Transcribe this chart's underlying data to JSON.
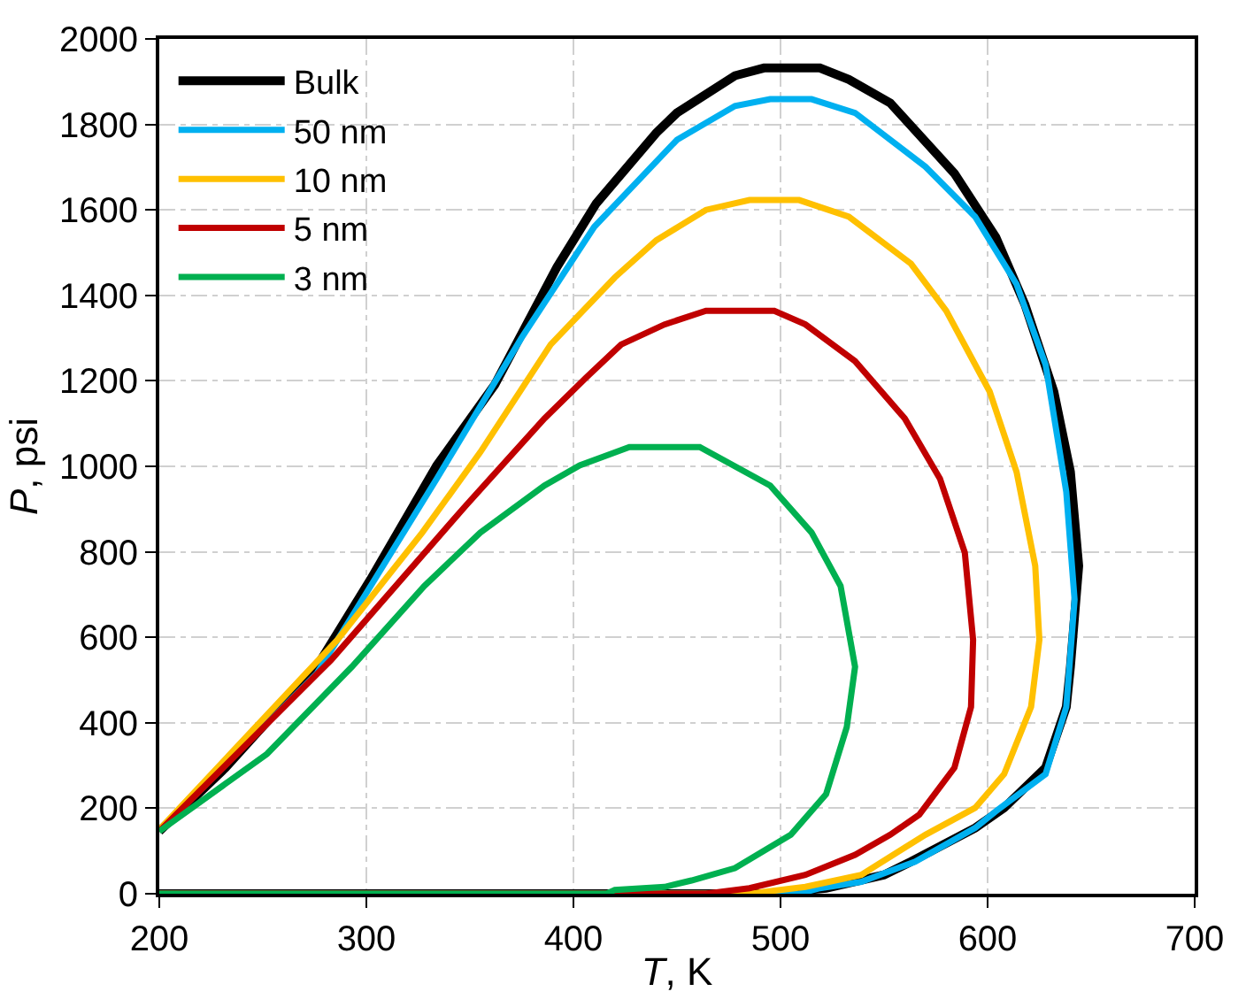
{
  "chart_data": {
    "type": "line",
    "xlabel": "T, K",
    "ylabel": "P, psi",
    "xlim": [
      200,
      700
    ],
    "xticks": [
      200,
      300,
      400,
      500,
      600,
      700
    ],
    "ylim": [
      0,
      2000
    ],
    "yticks": [
      0,
      200,
      400,
      600,
      800,
      1000,
      1200,
      1400,
      1600,
      1800,
      2000
    ],
    "grid": true,
    "legend": "top left",
    "marker": "none",
    "line_style": "solid",
    "series": [
      {
        "name": "Bulk",
        "color": "#000000",
        "x": [
          200,
          232,
          276,
          302,
          334,
          362,
          392,
          411,
          440,
          450,
          478,
          492,
          519,
          533,
          553,
          584,
          604,
          618,
          632,
          640,
          644,
          640,
          638,
          628,
          608,
          594,
          563,
          550,
          522,
          495,
          200
        ],
        "values": [
          146,
          295,
          531,
          735,
          1002,
          1191,
          1466,
          1615,
          1780,
          1827,
          1914,
          1932,
          1932,
          1905,
          1850,
          1685,
          1536,
          1379,
          1175,
          987,
          767,
          531,
          437,
          295,
          201,
          154,
          75,
          44,
          13,
          0,
          0
        ]
      },
      {
        "name": "50 nm",
        "color": "#00b0f0",
        "x": [
          200,
          276,
          334,
          375,
          410,
          450,
          478,
          495,
          515,
          536,
          570,
          594,
          614,
          628,
          638,
          642,
          638,
          628,
          604,
          594,
          565,
          539,
          519,
          509,
          200
        ],
        "values": [
          146,
          515,
          971,
          1301,
          1560,
          1764,
          1843,
          1859,
          1859,
          1827,
          1701,
          1584,
          1426,
          1238,
          940,
          688,
          437,
          280,
          193,
          154,
          75,
          28,
          13,
          0,
          0
        ]
      },
      {
        "name": "10 nm",
        "color": "#ffc000",
        "x": [
          200,
          286,
          327,
          355,
          389,
          420,
          440,
          464,
          485,
          509,
          533,
          563,
          580,
          601,
          614,
          623,
          625,
          621,
          608,
          594,
          570,
          539,
          512,
          485,
          200
        ],
        "values": [
          150,
          594,
          845,
          1033,
          1285,
          1442,
          1529,
          1600,
          1623,
          1623,
          1584,
          1474,
          1364,
          1175,
          987,
          767,
          594,
          437,
          280,
          201,
          138,
          44,
          16,
          0,
          0
        ]
      },
      {
        "name": "5 nm",
        "color": "#c00000",
        "x": [
          200,
          283,
          348,
          386,
          406,
          423,
          444,
          464,
          497,
          512,
          536,
          560,
          577,
          589,
          593,
          592,
          584,
          567,
          553,
          536,
          512,
          485,
          464,
          200
        ],
        "values": [
          146,
          547,
          908,
          1112,
          1207,
          1285,
          1332,
          1364,
          1364,
          1332,
          1246,
          1112,
          971,
          798,
          594,
          437,
          295,
          185,
          138,
          91,
          44,
          13,
          0,
          0
        ]
      },
      {
        "name": "3 nm",
        "color": "#00b050",
        "x": [
          200,
          252,
          293,
          328,
          355,
          386,
          403,
          427,
          461,
          495,
          515,
          529,
          536,
          532,
          522,
          505,
          478,
          457,
          444,
          420,
          416,
          200
        ],
        "values": [
          146,
          327,
          531,
          720,
          845,
          955,
          1002,
          1045,
          1045,
          955,
          845,
          720,
          531,
          390,
          233,
          138,
          60,
          31,
          16,
          9,
          0,
          0
        ]
      }
    ]
  }
}
